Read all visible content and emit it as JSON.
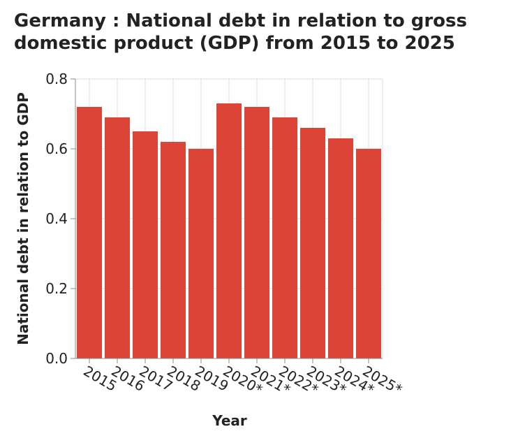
{
  "chart_data": {
    "type": "bar",
    "title": "Germany : National debt in relation to gross domestic product (GDP) from 2015 to 2025",
    "xlabel": "Year",
    "ylabel": "National debt in relation to GDP",
    "categories": [
      "2015",
      "2016",
      "2017",
      "2018",
      "2019",
      "2020*",
      "2021*",
      "2022*",
      "2023*",
      "2024*",
      "2025*"
    ],
    "values": [
      0.72,
      0.69,
      0.65,
      0.62,
      0.6,
      0.73,
      0.72,
      0.69,
      0.66,
      0.63,
      0.6
    ],
    "ylim": [
      0,
      0.8
    ],
    "yticks": [
      "0.0",
      "0.2",
      "0.4",
      "0.6",
      "0.8"
    ],
    "grid": true,
    "bar_color": "#db4437",
    "grid_color": "#dddddd",
    "axis_color": "#888888"
  }
}
